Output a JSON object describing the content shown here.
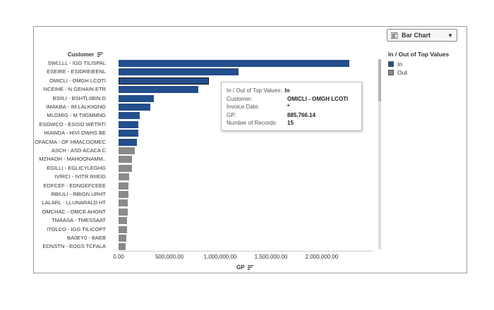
{
  "dropdown": {
    "label": "Bar Chart",
    "icon": "bar-chart-icon"
  },
  "legend": {
    "title": "In / Out of Top Values",
    "items": [
      {
        "label": "In",
        "color": "#244e8c"
      },
      {
        "label": "Out",
        "color": "#8a8a8a"
      }
    ]
  },
  "customer_header": "Customer",
  "x_axis_title": "GP",
  "x_ticks": [
    "0.00",
    "500,000.00",
    "1,000,000.00",
    "1,500,000.00",
    "2,000,000.00"
  ],
  "tooltip": {
    "title_key": "In / Out of Top Values:",
    "title_value": "In",
    "rows": [
      {
        "key": "Customer:",
        "value": "OMICLI - OMGH LCOTI"
      },
      {
        "key": "Invoice Date:",
        "value": "*"
      },
      {
        "key": "GP:",
        "value": "885,766.14"
      },
      {
        "key": "Number of Records:",
        "value": "15"
      }
    ]
  },
  "colors": {
    "in": "#244e8c",
    "out": "#8a8a8a"
  },
  "chart_data": {
    "type": "bar",
    "orientation": "horizontal",
    "xlabel": "GP",
    "ylabel": "Customer",
    "xlim": [
      0,
      2500000
    ],
    "grid": false,
    "legend_placement": "right",
    "categories": [
      "SWLLLL - IGG TILISPAL",
      "ESEIRE - ESIDREIEENL",
      "OMICLI - OMGH LCOTI",
      "NCEIHE - N GEHAIN ETR",
      "BSIILI - BSHTLIIBIN D",
      "IMAKBA - IM LALKIIGNG",
      "MLGMIG - M TIIGMMNG",
      "ESOWCO - ESISO WETRTI",
      "HIAWDA - HIVI DWHS BE",
      "OFACMA - OF HMACOOMEC",
      "ASCH - ASD ACACA C",
      "MZHAOH - MAHOONAMM..",
      "EGILLI - EGLICYLEGHG",
      "IVIRCI - IVITR RIIEIG",
      "EDFCEF - EDNGEFCEEE",
      "RBIULI - RBIGN URHT",
      "LALARL - LLUNARALD HT",
      "OMCHAC - OMCE AHONT",
      "TMAASA - TMESSAAT",
      "ITOLCO - IGG TILICOPT",
      "BA0EY0 - BAEB",
      "EDNSTN - EOGS TCFALA"
    ],
    "values": [
      2270000,
      1180000,
      885766.14,
      785000,
      345000,
      315000,
      210000,
      197000,
      192000,
      182000,
      160000,
      135000,
      130000,
      103000,
      100000,
      94000,
      92000,
      92000,
      82000,
      80000,
      74000,
      72000
    ],
    "group": [
      "In",
      "In",
      "In",
      "In",
      "In",
      "In",
      "In",
      "In",
      "In",
      "In",
      "Out",
      "Out",
      "Out",
      "Out",
      "Out",
      "Out",
      "Out",
      "Out",
      "Out",
      "Out",
      "Out",
      "Out"
    ],
    "selected": "OMICLI - OMGH LCOTI"
  }
}
